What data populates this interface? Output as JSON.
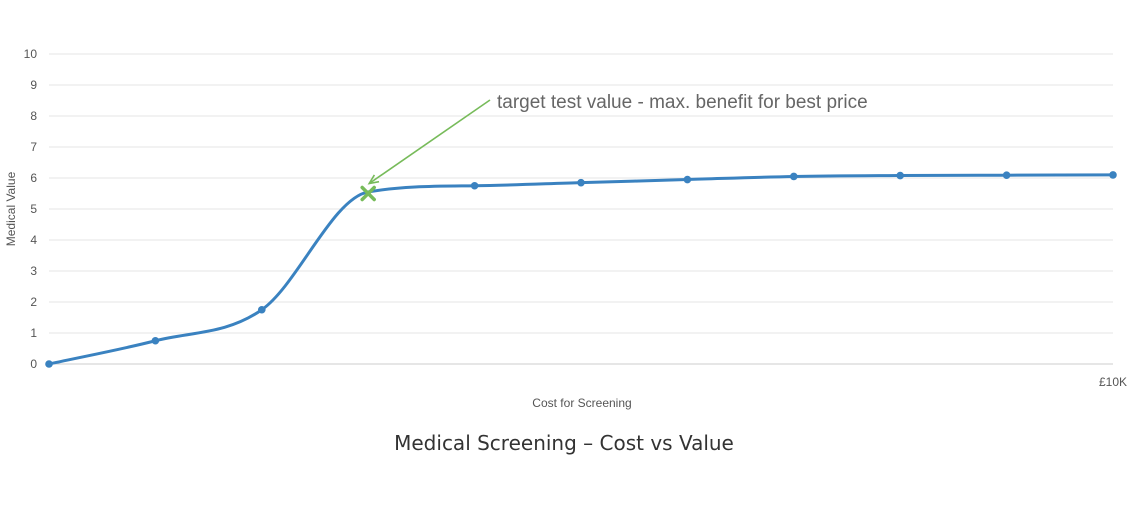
{
  "chart_data": {
    "type": "line",
    "title": "",
    "xlabel": "Cost for Screening",
    "ylabel": "Medical Value",
    "ylim": [
      0,
      10
    ],
    "xlim": [
      0,
      10
    ],
    "yticks": [
      0,
      1,
      2,
      3,
      4,
      5,
      6,
      7,
      8,
      9,
      10
    ],
    "xtick_labels": [
      {
        "x": 10,
        "label": "£10K"
      }
    ],
    "grid": true,
    "line_color": "#3a82c0",
    "series": [
      {
        "x": [
          0,
          1,
          2,
          3,
          4,
          5,
          6,
          7,
          8,
          9,
          10
        ],
        "values": [
          0,
          0.75,
          1.75,
          5.55,
          5.75,
          5.85,
          5.95,
          6.05,
          6.08,
          6.09,
          6.1
        ]
      }
    ],
    "annotation": {
      "text": "target test value - max. benefit for best price",
      "marker": "x",
      "point": {
        "x": 3,
        "y": 5.5
      },
      "color": "#77bb5a"
    }
  },
  "caption": "Medical Screening – Cost vs Value"
}
